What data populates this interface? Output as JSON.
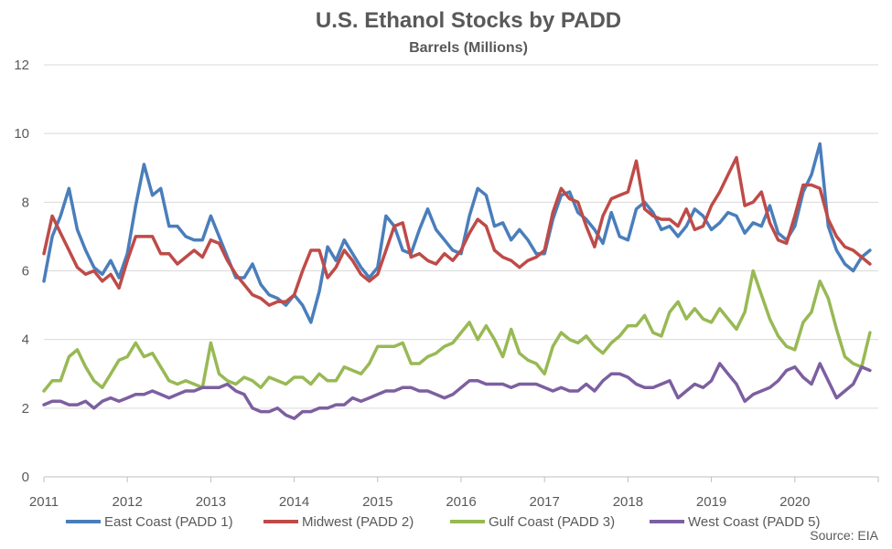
{
  "chart_data": {
    "type": "line",
    "title": "U.S. Ethanol Stocks by PADD",
    "subtitle": "Barrels (Millions)",
    "xlabel": "",
    "ylabel": "",
    "xlim": [
      2011,
      2021
    ],
    "ylim": [
      0,
      12
    ],
    "y_ticks": [
      "0",
      "2",
      "4",
      "6",
      "8",
      "10",
      "12"
    ],
    "x_ticks": [
      "2011",
      "2012",
      "2013",
      "2014",
      "2015",
      "2016",
      "2017",
      "2018",
      "2019",
      "2020"
    ],
    "grid": "horizontal",
    "legend_position": "bottom",
    "source": "Source: EIA",
    "series": [
      {
        "name": "East Coast (PADD 1)",
        "color": "#4a7ebb",
        "x": [
          2011.0,
          2011.1,
          2011.2,
          2011.3,
          2011.4,
          2011.5,
          2011.6,
          2011.7,
          2011.8,
          2011.9,
          2012.0,
          2012.1,
          2012.2,
          2012.3,
          2012.4,
          2012.5,
          2012.6,
          2012.7,
          2012.8,
          2012.9,
          2013.0,
          2013.1,
          2013.2,
          2013.3,
          2013.4,
          2013.5,
          2013.6,
          2013.7,
          2013.8,
          2013.9,
          2014.0,
          2014.1,
          2014.2,
          2014.3,
          2014.4,
          2014.5,
          2014.6,
          2014.7,
          2014.8,
          2014.9,
          2015.0,
          2015.1,
          2015.2,
          2015.3,
          2015.4,
          2015.5,
          2015.6,
          2015.7,
          2015.8,
          2015.9,
          2016.0,
          2016.1,
          2016.2,
          2016.3,
          2016.4,
          2016.5,
          2016.6,
          2016.7,
          2016.8,
          2016.9,
          2017.0,
          2017.1,
          2017.2,
          2017.3,
          2017.4,
          2017.5,
          2017.6,
          2017.7,
          2017.8,
          2017.9,
          2018.0,
          2018.1,
          2018.2,
          2018.3,
          2018.4,
          2018.5,
          2018.6,
          2018.7,
          2018.8,
          2018.9,
          2019.0,
          2019.1,
          2019.2,
          2019.3,
          2019.4,
          2019.5,
          2019.6,
          2019.7,
          2019.8,
          2019.9,
          2020.0,
          2020.1,
          2020.2,
          2020.3,
          2020.4,
          2020.5,
          2020.6,
          2020.7,
          2020.8,
          2020.9
        ],
        "values": [
          5.7,
          7.0,
          7.6,
          8.4,
          7.2,
          6.6,
          6.1,
          5.9,
          6.3,
          5.8,
          6.5,
          7.9,
          9.1,
          8.2,
          8.4,
          7.3,
          7.3,
          7.0,
          6.9,
          6.9,
          7.6,
          7.0,
          6.4,
          5.8,
          5.8,
          6.2,
          5.6,
          5.3,
          5.2,
          5.0,
          5.3,
          5.0,
          4.5,
          5.4,
          6.7,
          6.3,
          6.9,
          6.5,
          6.1,
          5.8,
          6.1,
          7.6,
          7.3,
          6.6,
          6.5,
          7.2,
          7.8,
          7.2,
          6.9,
          6.6,
          6.5,
          7.6,
          8.4,
          8.2,
          7.3,
          7.4,
          6.9,
          7.2,
          6.9,
          6.5,
          6.5,
          7.5,
          8.2,
          8.3,
          7.7,
          7.5,
          7.2,
          6.8,
          7.7,
          7.0,
          6.9,
          7.8,
          8.0,
          7.7,
          7.2,
          7.3,
          7.0,
          7.3,
          7.8,
          7.6,
          7.2,
          7.4,
          7.7,
          7.6,
          7.1,
          7.4,
          7.3,
          7.9,
          7.1,
          6.9,
          7.3,
          8.3,
          8.8,
          9.7,
          7.3,
          6.6,
          6.2,
          6.0,
          6.4,
          6.6
        ]
      },
      {
        "name": "Midwest (PADD 2)",
        "color": "#be4b48",
        "x": [
          2011.0,
          2011.1,
          2011.2,
          2011.3,
          2011.4,
          2011.5,
          2011.6,
          2011.7,
          2011.8,
          2011.9,
          2012.0,
          2012.1,
          2012.2,
          2012.3,
          2012.4,
          2012.5,
          2012.6,
          2012.7,
          2012.8,
          2012.9,
          2013.0,
          2013.1,
          2013.2,
          2013.3,
          2013.4,
          2013.5,
          2013.6,
          2013.7,
          2013.8,
          2013.9,
          2014.0,
          2014.1,
          2014.2,
          2014.3,
          2014.4,
          2014.5,
          2014.6,
          2014.7,
          2014.8,
          2014.9,
          2015.0,
          2015.1,
          2015.2,
          2015.3,
          2015.4,
          2015.5,
          2015.6,
          2015.7,
          2015.8,
          2015.9,
          2016.0,
          2016.1,
          2016.2,
          2016.3,
          2016.4,
          2016.5,
          2016.6,
          2016.7,
          2016.8,
          2016.9,
          2017.0,
          2017.1,
          2017.2,
          2017.3,
          2017.4,
          2017.5,
          2017.6,
          2017.7,
          2017.8,
          2017.9,
          2018.0,
          2018.1,
          2018.2,
          2018.3,
          2018.4,
          2018.5,
          2018.6,
          2018.7,
          2018.8,
          2018.9,
          2019.0,
          2019.1,
          2019.2,
          2019.3,
          2019.4,
          2019.5,
          2019.6,
          2019.7,
          2019.8,
          2019.9,
          2020.0,
          2020.1,
          2020.2,
          2020.3,
          2020.4,
          2020.5,
          2020.6,
          2020.7,
          2020.8,
          2020.9
        ],
        "values": [
          6.5,
          7.6,
          7.1,
          6.6,
          6.1,
          5.9,
          6.0,
          5.7,
          5.9,
          5.5,
          6.3,
          7.0,
          7.0,
          7.0,
          6.5,
          6.5,
          6.2,
          6.4,
          6.6,
          6.4,
          6.9,
          6.8,
          6.3,
          5.9,
          5.6,
          5.3,
          5.2,
          5.0,
          5.1,
          5.1,
          5.3,
          6.0,
          6.6,
          6.6,
          5.8,
          6.1,
          6.6,
          6.3,
          5.9,
          5.7,
          5.9,
          6.6,
          7.3,
          7.4,
          6.4,
          6.5,
          6.3,
          6.2,
          6.5,
          6.3,
          6.6,
          7.1,
          7.5,
          7.3,
          6.6,
          6.4,
          6.3,
          6.1,
          6.3,
          6.4,
          6.6,
          7.7,
          8.4,
          8.1,
          8.0,
          7.3,
          6.7,
          7.6,
          8.1,
          8.2,
          8.3,
          9.2,
          7.8,
          7.6,
          7.5,
          7.5,
          7.3,
          7.8,
          7.2,
          7.3,
          7.9,
          8.3,
          8.8,
          9.3,
          7.9,
          8.0,
          8.3,
          7.4,
          6.9,
          6.8,
          7.6,
          8.5,
          8.5,
          8.4,
          7.5,
          7.0,
          6.7,
          6.6,
          6.4,
          6.2
        ]
      },
      {
        "name": "Gulf Coast (PADD 3)",
        "color": "#98b954",
        "x": [
          2011.0,
          2011.1,
          2011.2,
          2011.3,
          2011.4,
          2011.5,
          2011.6,
          2011.7,
          2011.8,
          2011.9,
          2012.0,
          2012.1,
          2012.2,
          2012.3,
          2012.4,
          2012.5,
          2012.6,
          2012.7,
          2012.8,
          2012.9,
          2013.0,
          2013.1,
          2013.2,
          2013.3,
          2013.4,
          2013.5,
          2013.6,
          2013.7,
          2013.8,
          2013.9,
          2014.0,
          2014.1,
          2014.2,
          2014.3,
          2014.4,
          2014.5,
          2014.6,
          2014.7,
          2014.8,
          2014.9,
          2015.0,
          2015.1,
          2015.2,
          2015.3,
          2015.4,
          2015.5,
          2015.6,
          2015.7,
          2015.8,
          2015.9,
          2016.0,
          2016.1,
          2016.2,
          2016.3,
          2016.4,
          2016.5,
          2016.6,
          2016.7,
          2016.8,
          2016.9,
          2017.0,
          2017.1,
          2017.2,
          2017.3,
          2017.4,
          2017.5,
          2017.6,
          2017.7,
          2017.8,
          2017.9,
          2018.0,
          2018.1,
          2018.2,
          2018.3,
          2018.4,
          2018.5,
          2018.6,
          2018.7,
          2018.8,
          2018.9,
          2019.0,
          2019.1,
          2019.2,
          2019.3,
          2019.4,
          2019.5,
          2019.6,
          2019.7,
          2019.8,
          2019.9,
          2020.0,
          2020.1,
          2020.2,
          2020.3,
          2020.4,
          2020.5,
          2020.6,
          2020.7,
          2020.8,
          2020.9
        ],
        "values": [
          2.5,
          2.8,
          2.8,
          3.5,
          3.7,
          3.2,
          2.8,
          2.6,
          3.0,
          3.4,
          3.5,
          3.9,
          3.5,
          3.6,
          3.2,
          2.8,
          2.7,
          2.8,
          2.7,
          2.6,
          3.9,
          3.0,
          2.8,
          2.7,
          2.9,
          2.8,
          2.6,
          2.9,
          2.8,
          2.7,
          2.9,
          2.9,
          2.7,
          3.0,
          2.8,
          2.8,
          3.2,
          3.1,
          3.0,
          3.3,
          3.8,
          3.8,
          3.8,
          3.9,
          3.3,
          3.3,
          3.5,
          3.6,
          3.8,
          3.9,
          4.2,
          4.5,
          4.0,
          4.4,
          4.0,
          3.5,
          4.3,
          3.6,
          3.4,
          3.3,
          3.0,
          3.8,
          4.2,
          4.0,
          3.9,
          4.1,
          3.8,
          3.6,
          3.9,
          4.1,
          4.4,
          4.4,
          4.7,
          4.2,
          4.1,
          4.8,
          5.1,
          4.6,
          4.9,
          4.6,
          4.5,
          4.9,
          4.6,
          4.3,
          4.8,
          6.0,
          5.3,
          4.6,
          4.1,
          3.8,
          3.7,
          4.5,
          4.8,
          5.7,
          5.2,
          4.3,
          3.5,
          3.3,
          3.2,
          4.2
        ]
      },
      {
        "name": "West Coast (PADD 5)",
        "color": "#7d5fa0",
        "x": [
          2011.0,
          2011.1,
          2011.2,
          2011.3,
          2011.4,
          2011.5,
          2011.6,
          2011.7,
          2011.8,
          2011.9,
          2012.0,
          2012.1,
          2012.2,
          2012.3,
          2012.4,
          2012.5,
          2012.6,
          2012.7,
          2012.8,
          2012.9,
          2013.0,
          2013.1,
          2013.2,
          2013.3,
          2013.4,
          2013.5,
          2013.6,
          2013.7,
          2013.8,
          2013.9,
          2014.0,
          2014.1,
          2014.2,
          2014.3,
          2014.4,
          2014.5,
          2014.6,
          2014.7,
          2014.8,
          2014.9,
          2015.0,
          2015.1,
          2015.2,
          2015.3,
          2015.4,
          2015.5,
          2015.6,
          2015.7,
          2015.8,
          2015.9,
          2016.0,
          2016.1,
          2016.2,
          2016.3,
          2016.4,
          2016.5,
          2016.6,
          2016.7,
          2016.8,
          2016.9,
          2017.0,
          2017.1,
          2017.2,
          2017.3,
          2017.4,
          2017.5,
          2017.6,
          2017.7,
          2017.8,
          2017.9,
          2018.0,
          2018.1,
          2018.2,
          2018.3,
          2018.4,
          2018.5,
          2018.6,
          2018.7,
          2018.8,
          2018.9,
          2019.0,
          2019.1,
          2019.2,
          2019.3,
          2019.4,
          2019.5,
          2019.6,
          2019.7,
          2019.8,
          2019.9,
          2020.0,
          2020.1,
          2020.2,
          2020.3,
          2020.4,
          2020.5,
          2020.6,
          2020.7,
          2020.8,
          2020.9
        ],
        "values": [
          2.1,
          2.2,
          2.2,
          2.1,
          2.1,
          2.2,
          2.0,
          2.2,
          2.3,
          2.2,
          2.3,
          2.4,
          2.4,
          2.5,
          2.4,
          2.3,
          2.4,
          2.5,
          2.5,
          2.6,
          2.6,
          2.6,
          2.7,
          2.5,
          2.4,
          2.0,
          1.9,
          1.9,
          2.0,
          1.8,
          1.7,
          1.9,
          1.9,
          2.0,
          2.0,
          2.1,
          2.1,
          2.3,
          2.2,
          2.3,
          2.4,
          2.5,
          2.5,
          2.6,
          2.6,
          2.5,
          2.5,
          2.4,
          2.3,
          2.4,
          2.6,
          2.8,
          2.8,
          2.7,
          2.7,
          2.7,
          2.6,
          2.7,
          2.7,
          2.7,
          2.6,
          2.5,
          2.6,
          2.5,
          2.5,
          2.7,
          2.5,
          2.8,
          3.0,
          3.0,
          2.9,
          2.7,
          2.6,
          2.6,
          2.7,
          2.8,
          2.3,
          2.5,
          2.7,
          2.6,
          2.8,
          3.3,
          3.0,
          2.7,
          2.2,
          2.4,
          2.5,
          2.6,
          2.8,
          3.1,
          3.2,
          2.9,
          2.7,
          3.3,
          2.8,
          2.3,
          2.5,
          2.7,
          3.2,
          3.1
        ]
      }
    ]
  }
}
